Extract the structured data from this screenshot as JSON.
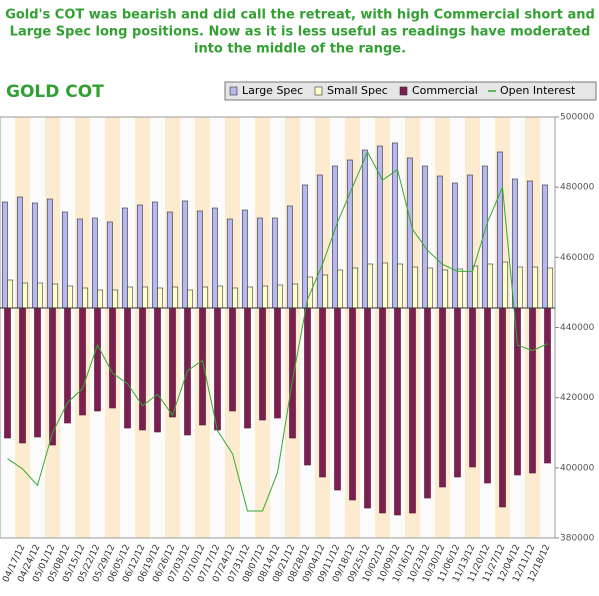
{
  "chart_data": {
    "type": "bar",
    "annotation": [
      "Gold's COT was bearish and did call the retreat, with high Commercial short and",
      "Large Spec long positions. Now as it is less useful as readings have moderated",
      "into the middle of the range."
    ],
    "title": "GOLD COT",
    "categories": [
      null,
      "04/17/12",
      "04/24/12",
      "05/01/12",
      "05/08/12",
      "05/15/12",
      "05/22/12",
      "05/29/12",
      "06/05/12",
      "06/12/12",
      "06/19/12",
      "06/26/12",
      "07/03/12",
      "07/10/12",
      "07/17/12",
      "07/24/12",
      "07/31/12",
      "08/07/12",
      "08/14/12",
      "08/21/12",
      "08/28/12",
      "09/04/12",
      "09/11/12",
      "09/18/12",
      "09/25/12",
      "10/02/12",
      "10/09/12",
      "10/16/12",
      "10/23/12",
      "10/30/12",
      "11/06/12",
      "11/13/12",
      "11/20/12",
      "11/27/12",
      "12/04/12",
      "12/11/12",
      "12/18/12"
    ],
    "series": [
      {
        "name": "Large Spec",
        "color": "#b8b8f0",
        "values": [
          106000,
          111000,
          105000,
          109000,
          96000,
          89000,
          90000,
          86000,
          100000,
          103000,
          106000,
          96000,
          107000,
          97000,
          100000,
          89000,
          98000,
          90000,
          90000,
          102000,
          123000,
          133000,
          142000,
          148000,
          158000,
          162000,
          165000,
          150000,
          142000,
          132000,
          125000,
          133000,
          142000,
          156000,
          129000,
          127000,
          123000
        ]
      },
      {
        "name": "Small Spec",
        "color": "#ffffcc",
        "values": [
          28000,
          25000,
          25000,
          24000,
          22000,
          20000,
          18000,
          18000,
          21000,
          21000,
          20000,
          21000,
          18000,
          21000,
          22000,
          20000,
          21000,
          22000,
          23000,
          24000,
          31000,
          33000,
          38000,
          40000,
          44000,
          45000,
          44000,
          41000,
          40000,
          38000,
          39000,
          42000,
          44000,
          46000,
          41000,
          41000,
          40000
        ]
      },
      {
        "name": "Commercial",
        "color": "#7a1f4f",
        "values": [
          -130000,
          -135000,
          -129000,
          -137000,
          -115000,
          -107000,
          -103000,
          -100000,
          -120000,
          -122000,
          -124000,
          -109000,
          -127000,
          -117000,
          -122000,
          -103000,
          -120000,
          -112000,
          -110000,
          -130000,
          -157000,
          -169000,
          -182000,
          -192000,
          -200000,
          -205000,
          -207000,
          -205000,
          -190000,
          -179000,
          -169000,
          -159000,
          -175000,
          -199000,
          -167000,
          -165000,
          -155000
        ]
      },
      {
        "name": "Open Interest",
        "color": "#33aa33",
        "axis": "y2",
        "type": "line",
        "values": [
          402600,
          399700,
          395000,
          410000,
          418600,
          422600,
          435000,
          427000,
          424000,
          417700,
          421000,
          415000,
          427700,
          430600,
          410600,
          404000,
          387700,
          387700,
          398600,
          425000,
          448000,
          458000,
          470000,
          480000,
          490000,
          482000,
          485000,
          468000,
          462000,
          458000,
          456000,
          456000,
          470000,
          480000,
          435000,
          433400,
          435400
        ]
      }
    ],
    "ylim": [
      -230000,
      191000
    ],
    "y2lim": [
      380000,
      500000
    ],
    "y2ticks": [
      380000,
      400000,
      420000,
      440000,
      460000,
      480000,
      500000
    ],
    "legend": "top-right"
  }
}
